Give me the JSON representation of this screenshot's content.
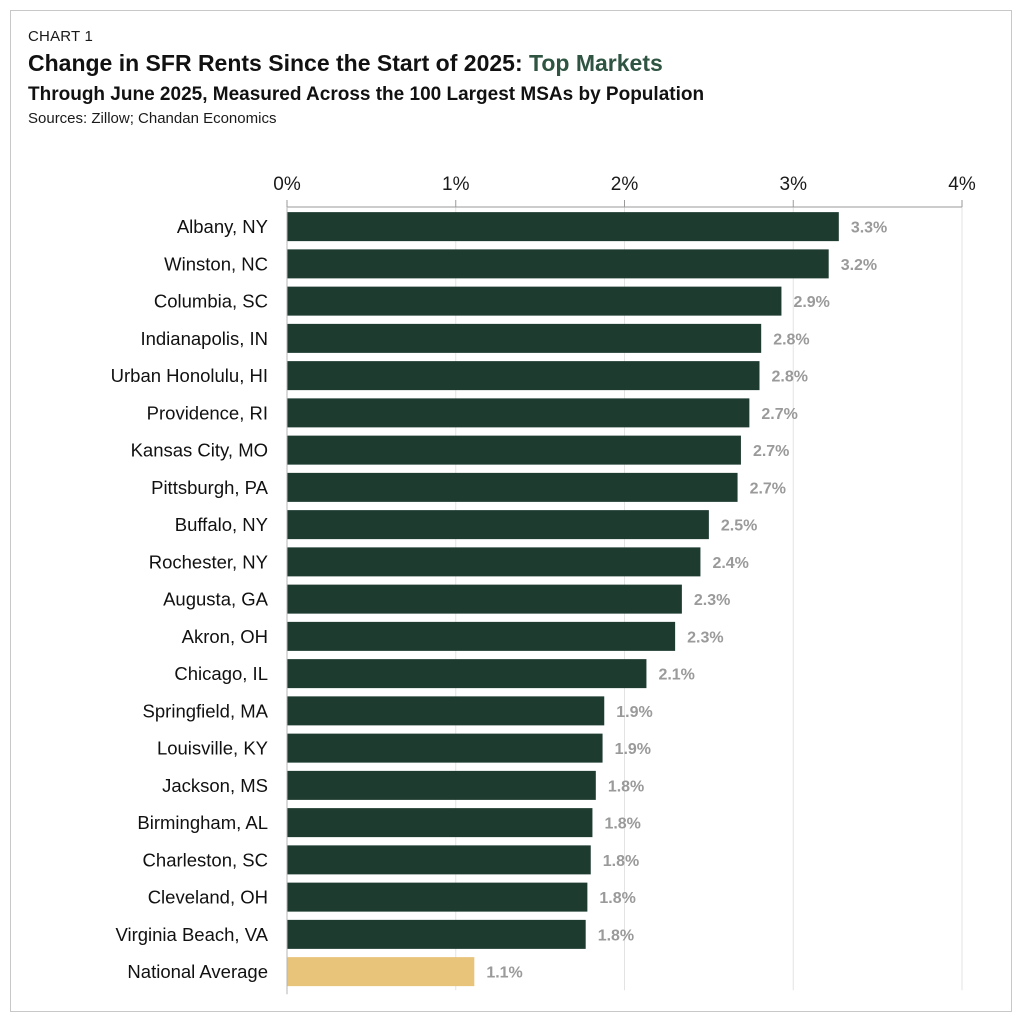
{
  "chart_data": {
    "type": "bar",
    "orientation": "horizontal",
    "kicker": "CHART 1",
    "title_main": "Change in SFR Rents Since the Start of 2025: ",
    "title_accent": "Top Markets",
    "subtitle": "Through June 2025, Measured Across the 100 Largest MSAs by Population",
    "sources": "Sources: Zillow; Chandan Economics",
    "xlim": [
      0,
      4
    ],
    "xticks": [
      0,
      1,
      2,
      3,
      4
    ],
    "tick_labels": [
      "0%",
      "1%",
      "2%",
      "3%",
      "4%"
    ],
    "grid": true,
    "categories": [
      "Albany, NY",
      "Winston, NC",
      "Columbia, SC",
      "Indianapolis, IN",
      "Urban Honolulu, HI",
      "Providence, RI",
      "Kansas City, MO",
      "Pittsburgh, PA",
      "Buffalo, NY",
      "Rochester, NY",
      "Augusta, GA",
      "Akron, OH",
      "Chicago, IL",
      "Springfield, MA",
      "Louisville, KY",
      "Jackson, MS",
      "Birmingham, AL",
      "Charleston, SC",
      "Cleveland, OH",
      "Virginia Beach, VA",
      "National Average"
    ],
    "values": [
      3.27,
      3.21,
      2.93,
      2.81,
      2.8,
      2.74,
      2.69,
      2.67,
      2.5,
      2.45,
      2.34,
      2.3,
      2.13,
      1.88,
      1.87,
      1.83,
      1.81,
      1.8,
      1.78,
      1.77,
      1.11
    ],
    "value_labels": [
      "3.3%",
      "3.2%",
      "2.9%",
      "2.8%",
      "2.8%",
      "2.7%",
      "2.7%",
      "2.7%",
      "2.5%",
      "2.4%",
      "2.3%",
      "2.3%",
      "2.1%",
      "1.9%",
      "1.9%",
      "1.8%",
      "1.8%",
      "1.8%",
      "1.8%",
      "1.8%",
      "1.1%"
    ],
    "colors": {
      "bar": "#1e3b30",
      "highlight": "#e8c47b",
      "grid": "#e3e3e3",
      "axis": "#9a9a9a",
      "value_label": "#9a9a9a"
    },
    "highlight_category": "National Average"
  }
}
